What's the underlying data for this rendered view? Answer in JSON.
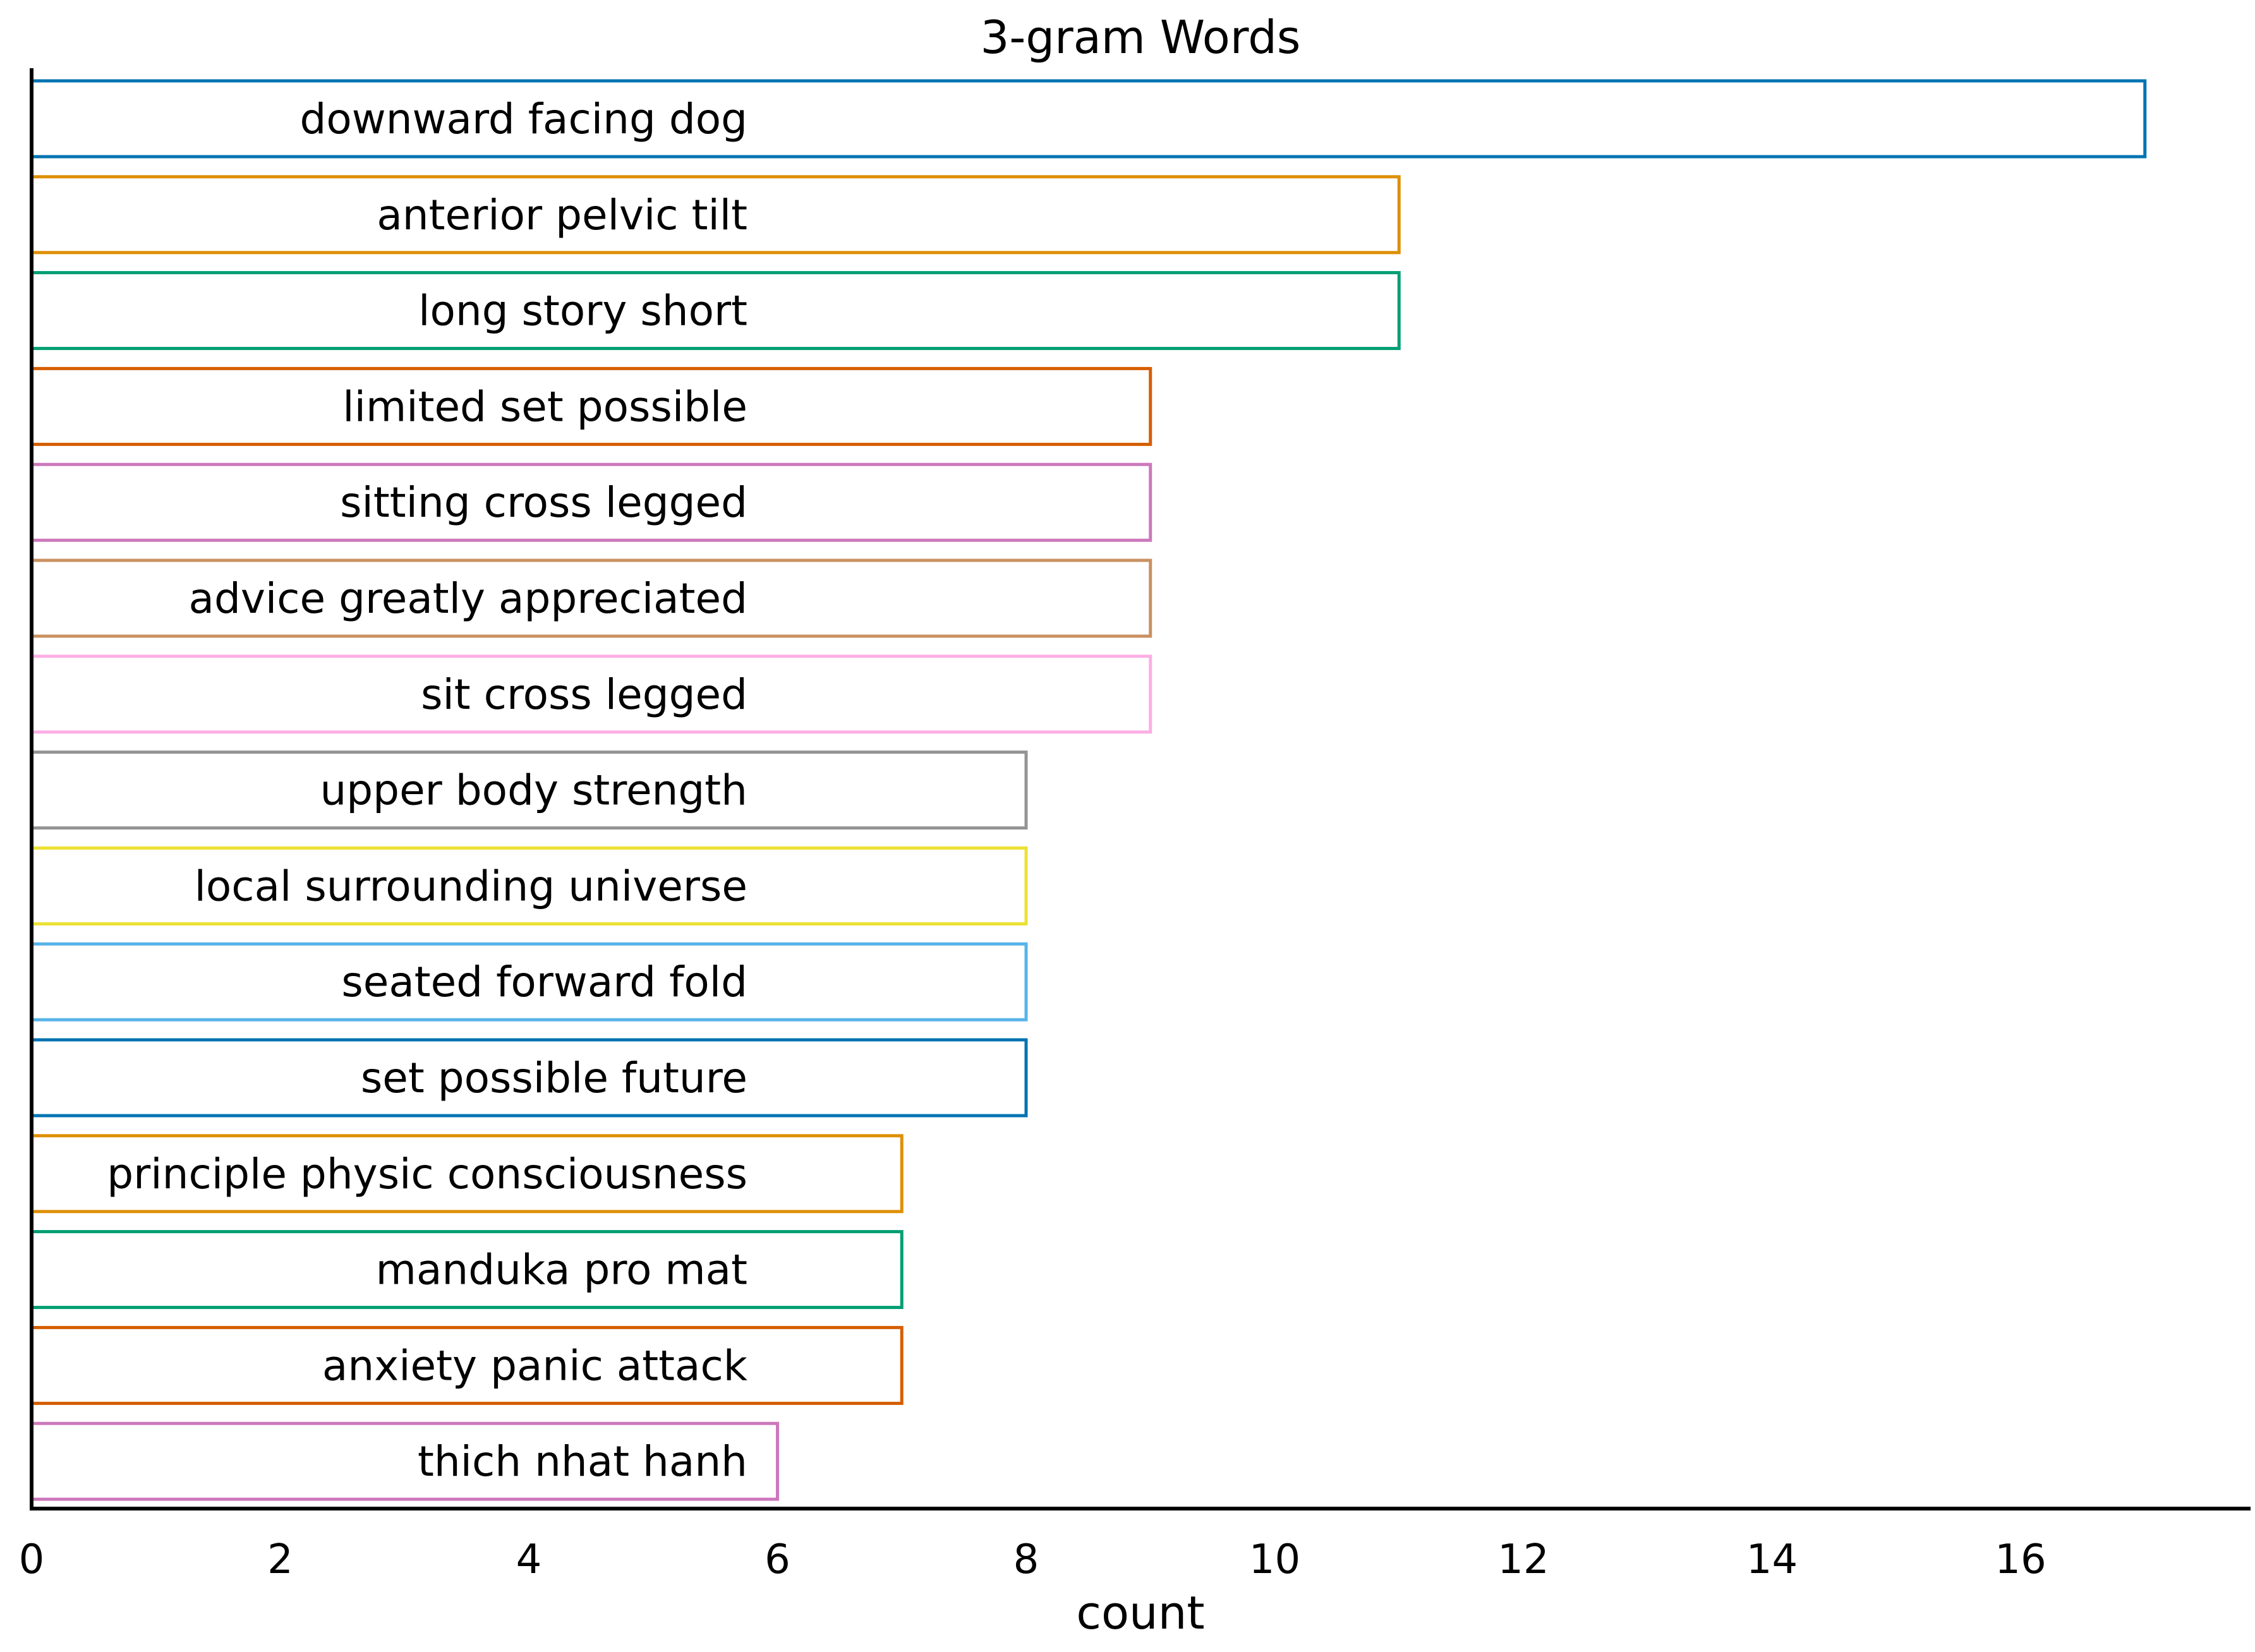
{
  "chart_data": {
    "type": "bar",
    "orientation": "horizontal",
    "title": "3-gram Words",
    "xlabel": "count",
    "ylabel": "",
    "xlim": [
      0,
      17.85
    ],
    "xticks": [
      0,
      2,
      4,
      6,
      8,
      10,
      12,
      14,
      16
    ],
    "grid": false,
    "bar_style": "outline",
    "categories": [
      "downward facing dog",
      "anterior pelvic tilt",
      "long story short",
      "limited set possible",
      "sitting cross legged",
      "advice greatly appreciated",
      "sit cross legged",
      "upper body strength",
      "local surrounding universe",
      "seated forward fold",
      "set possible future",
      "principle physic consciousness",
      "manduka pro mat",
      "anxiety panic attack",
      "thich nhat hanh"
    ],
    "values": [
      17,
      11,
      11,
      9,
      9,
      9,
      9,
      8,
      8,
      8,
      8,
      7,
      7,
      7,
      6
    ],
    "colors": [
      "#0173b2",
      "#de8f05",
      "#029e73",
      "#d55e00",
      "#cc78bc",
      "#ca9161",
      "#fbafe4",
      "#949494",
      "#ece133",
      "#56b4e9",
      "#0173b2",
      "#de8f05",
      "#029e73",
      "#d55e00",
      "#cc78bc"
    ]
  }
}
